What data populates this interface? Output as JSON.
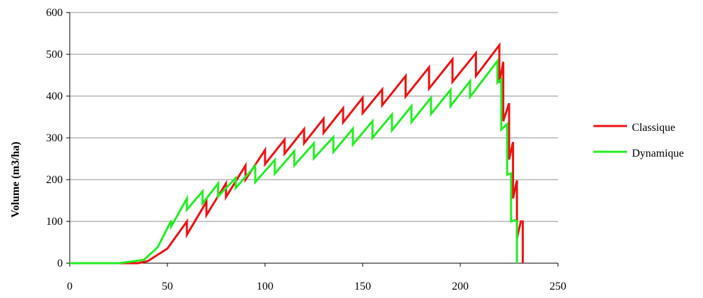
{
  "chart_data": {
    "type": "line",
    "title": "",
    "xlabel": "",
    "ylabel": "Volume (m3/ha)",
    "xlim": [
      0,
      250
    ],
    "ylim": [
      0,
      600
    ],
    "xticks": [
      0,
      50,
      100,
      150,
      200,
      250
    ],
    "yticks": [
      0,
      100,
      200,
      300,
      400,
      500,
      600
    ],
    "x_tick_labels": [
      "0",
      "50",
      "100",
      "150",
      "200",
      "250"
    ],
    "y_tick_labels": [
      "0",
      "100",
      "200",
      "300",
      "400",
      "500",
      "600"
    ],
    "grid": "horizontal",
    "legend_position": "right",
    "series": [
      {
        "name": "Classique",
        "color": "#ee1111",
        "points": [
          [
            0,
            0
          ],
          [
            35,
            0
          ],
          [
            40,
            5
          ],
          [
            50,
            35
          ],
          [
            50,
            35
          ],
          [
            50,
            35
          ],
          [
            60,
            100
          ],
          [
            60,
            68
          ],
          [
            70,
            147
          ],
          [
            70,
            115
          ],
          [
            80,
            191
          ],
          [
            80,
            158
          ],
          [
            90,
            234
          ],
          [
            90,
            200
          ],
          [
            100,
            271
          ],
          [
            100,
            237
          ],
          [
            110,
            296
          ],
          [
            110,
            262
          ],
          [
            120,
            321
          ],
          [
            120,
            287
          ],
          [
            130,
            346
          ],
          [
            130,
            312
          ],
          [
            140,
            371
          ],
          [
            140,
            337
          ],
          [
            150,
            396
          ],
          [
            150,
            359
          ],
          [
            160,
            416
          ],
          [
            160,
            378
          ],
          [
            172,
            448
          ],
          [
            172,
            399
          ],
          [
            184,
            469
          ],
          [
            184,
            418
          ],
          [
            196,
            488
          ],
          [
            196,
            434
          ],
          [
            208,
            503
          ],
          [
            208,
            448
          ],
          [
            220,
            522
          ],
          [
            220,
            432
          ],
          [
            222,
            482
          ],
          [
            222,
            340
          ],
          [
            225,
            383
          ],
          [
            225,
            248
          ],
          [
            227,
            290
          ],
          [
            227,
            155
          ],
          [
            229,
            198
          ],
          [
            229,
            60
          ],
          [
            231,
            100
          ],
          [
            232,
            100
          ],
          [
            232,
            0
          ]
        ]
      },
      {
        "name": "Dynamique",
        "color": "#22ee22",
        "points": [
          [
            0,
            0
          ],
          [
            25,
            0
          ],
          [
            38,
            8
          ],
          [
            45,
            38
          ],
          [
            52,
            102
          ],
          [
            52,
            88
          ],
          [
            60,
            155
          ],
          [
            60,
            128
          ],
          [
            68,
            172
          ],
          [
            68,
            143
          ],
          [
            76,
            191
          ],
          [
            76,
            160
          ],
          [
            85,
            204
          ],
          [
            85,
            180
          ],
          [
            95,
            233
          ],
          [
            95,
            194
          ],
          [
            105,
            247
          ],
          [
            105,
            214
          ],
          [
            115,
            268
          ],
          [
            115,
            234
          ],
          [
            125,
            287
          ],
          [
            125,
            251
          ],
          [
            135,
            302
          ],
          [
            135,
            266
          ],
          [
            145,
            322
          ],
          [
            145,
            284
          ],
          [
            155,
            340
          ],
          [
            155,
            300
          ],
          [
            165,
            356
          ],
          [
            165,
            318
          ],
          [
            175,
            376
          ],
          [
            175,
            338
          ],
          [
            185,
            396
          ],
          [
            185,
            357
          ],
          [
            195,
            415
          ],
          [
            195,
            376
          ],
          [
            205,
            436
          ],
          [
            205,
            398
          ],
          [
            219,
            484
          ],
          [
            219,
            432
          ],
          [
            221,
            440
          ],
          [
            221,
            320
          ],
          [
            224,
            333
          ],
          [
            224,
            212
          ],
          [
            226,
            215
          ],
          [
            226,
            100
          ],
          [
            228,
            103
          ],
          [
            229,
            100
          ],
          [
            229,
            0
          ]
        ]
      }
    ]
  }
}
